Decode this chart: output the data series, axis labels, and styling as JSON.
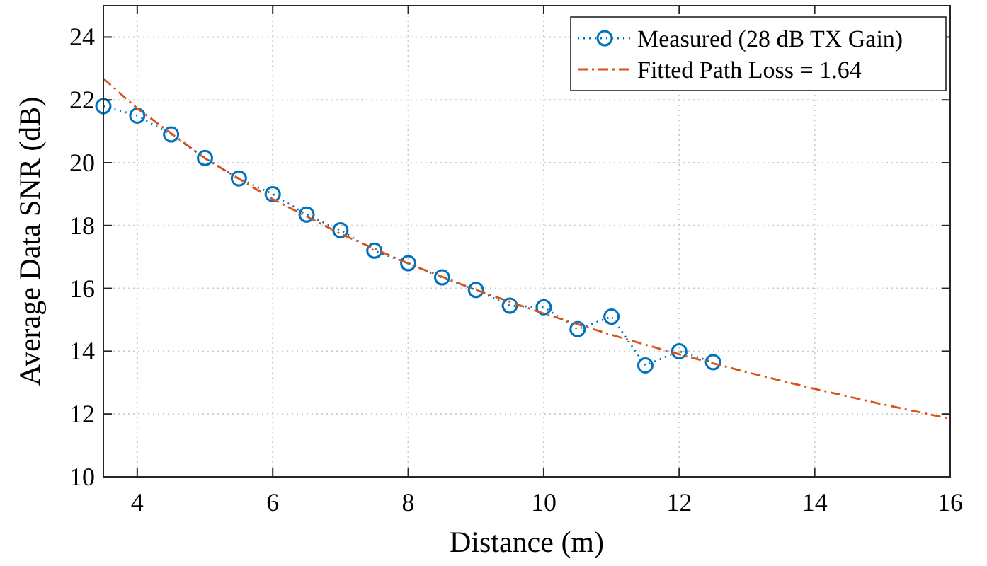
{
  "chart_data": {
    "type": "line",
    "xlabel": "Distance (m)",
    "ylabel": "Average Data SNR (dB)",
    "xlim": [
      3.5,
      16
    ],
    "xticks": [
      4,
      6,
      8,
      10,
      12,
      14,
      16
    ],
    "ylim": [
      10,
      25
    ],
    "yticks": [
      10,
      12,
      14,
      16,
      18,
      20,
      22,
      24
    ],
    "grid": true,
    "legend": "top right",
    "series": [
      {
        "name": "Measured (28 dB TX Gain)",
        "color": "#0072bd",
        "marker": "circle",
        "line_style": "dotted",
        "x": [
          3.5,
          4,
          4.5,
          5,
          5.5,
          6,
          6.5,
          7,
          7.5,
          8,
          8.5,
          9,
          9.5,
          10,
          10.5,
          11,
          11.5,
          12,
          12.5
        ],
        "values": [
          21.8,
          21.5,
          20.9,
          20.15,
          19.5,
          19.0,
          18.35,
          17.85,
          17.2,
          16.8,
          16.35,
          15.95,
          15.45,
          15.4,
          14.7,
          15.1,
          13.55,
          14.0,
          13.65
        ]
      },
      {
        "name": "Fitted Path Loss = 1.64",
        "color": "#d95319",
        "marker": "none",
        "line_style": "dashdot",
        "x": [
          3.5,
          4,
          5,
          6,
          7,
          8,
          9,
          10,
          11,
          12,
          13,
          14,
          15,
          16
        ],
        "values": [
          22.68,
          21.73,
          20.14,
          18.84,
          17.74,
          16.79,
          15.95,
          15.2,
          14.52,
          13.9,
          13.33,
          12.8,
          12.31,
          11.85
        ]
      }
    ]
  }
}
